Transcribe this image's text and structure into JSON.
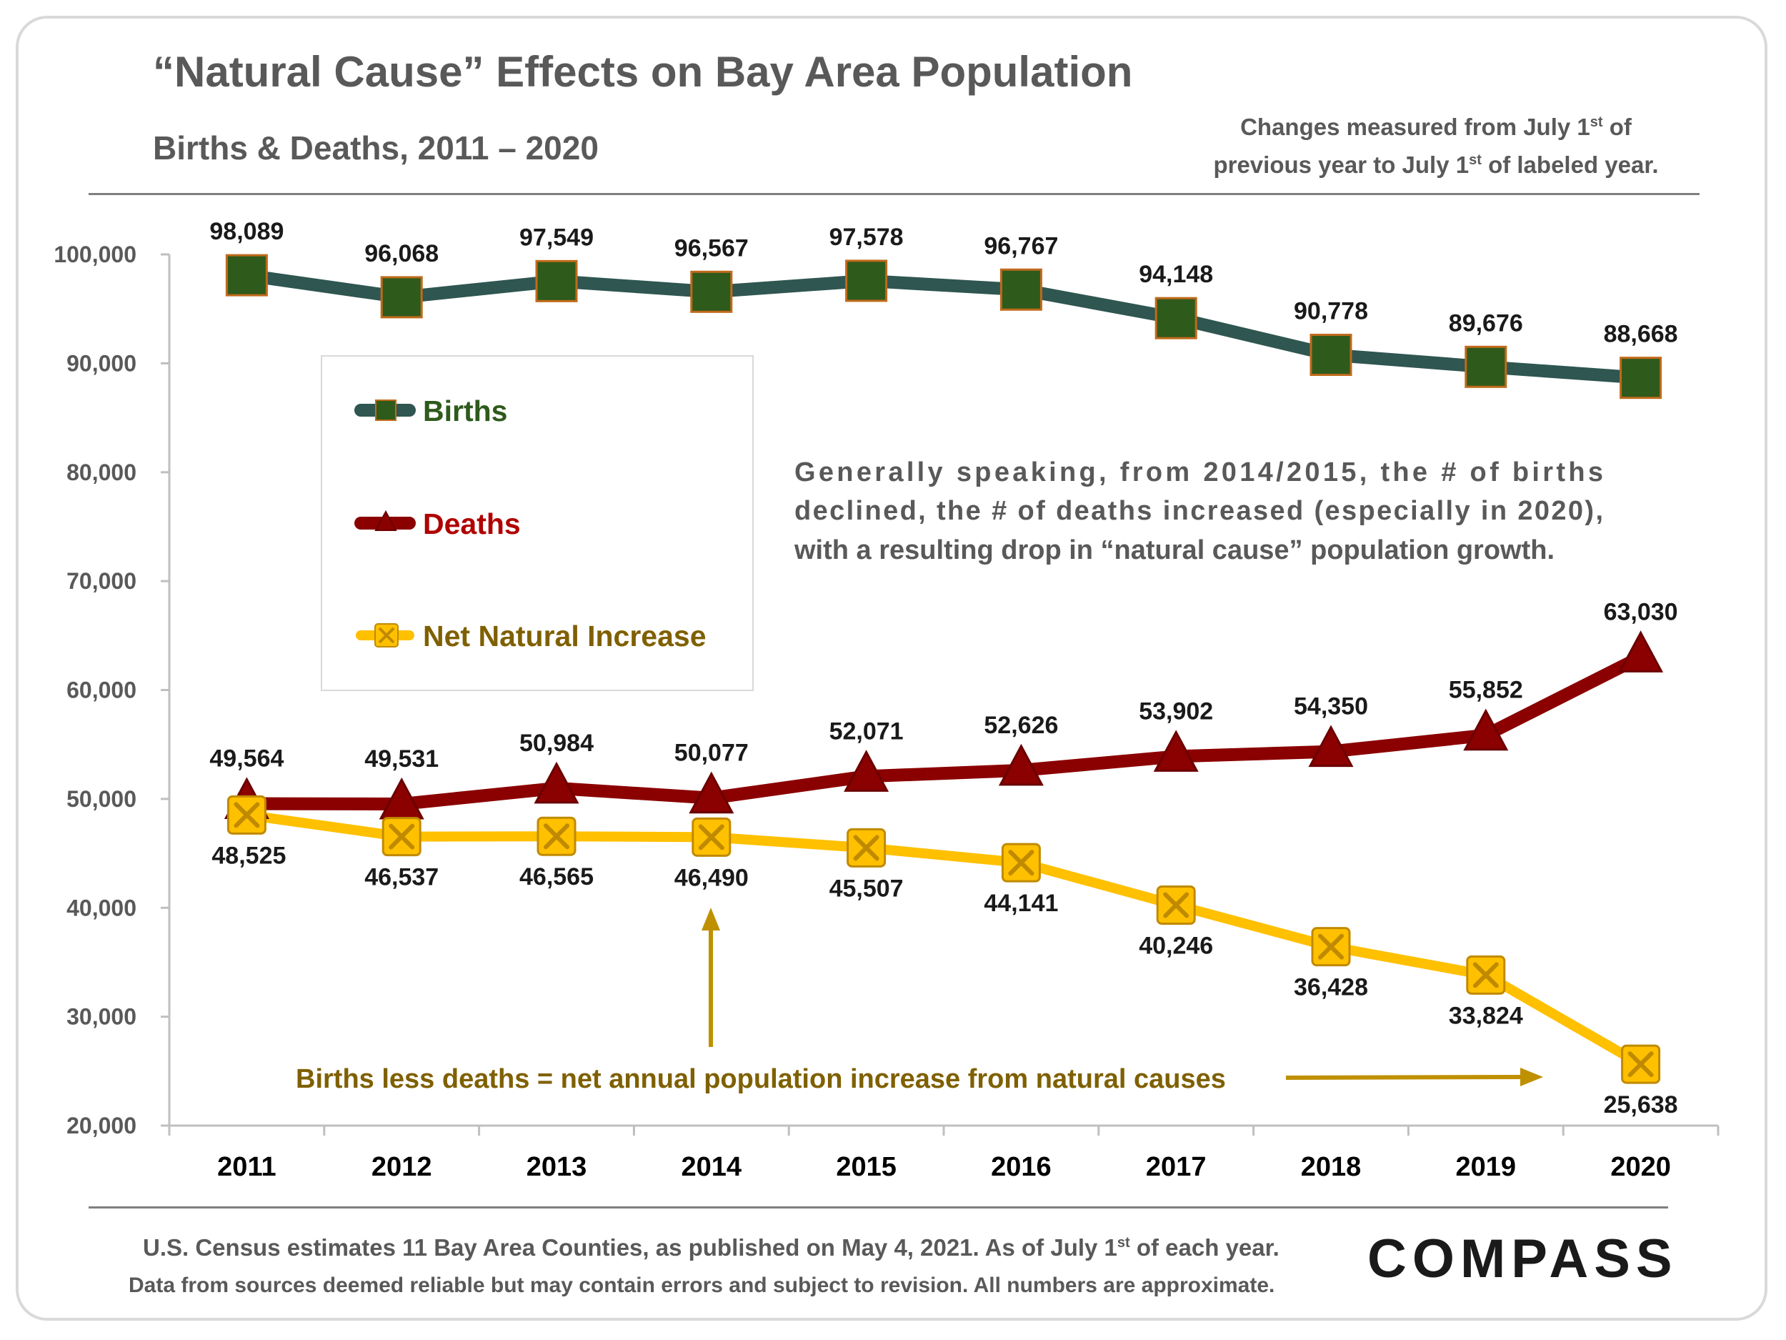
{
  "title": "“Natural Cause” Effects on Bay Area Population",
  "subtitle": "Births & Deaths, 2011 – 2020",
  "note": {
    "line1_a": "Changes measured from July 1",
    "line1_sup": "st",
    "line1_b": " of",
    "line2_a": "previous year to July 1",
    "line2_sup": "st",
    "line2_b": " of labeled year."
  },
  "annotation": {
    "line1": "Generally speaking, from 2014/2015, the # of births",
    "line2": "declined, the # of deaths increased (especially in 2020),",
    "line3": "with a resulting drop in “natural cause” population growth."
  },
  "bottom_note": "Births less deaths = net annual population increase from natural causes",
  "footer": {
    "line1_a": "U.S. Census estimates 11 Bay Area Counties, as published on May 4, 2021. As of July 1",
    "line1_sup": "st",
    "line1_b": " of each year.",
    "line2": "Data from sources deemed reliable but may contain errors and subject to revision. All numbers are approximate."
  },
  "logo": "COMPASS",
  "colors": {
    "births_line": "#2f5650",
    "births_marker": "#2e5a1c",
    "births_marker_edge": "#c06a1a",
    "births_legend_text": "#2e5a1c",
    "deaths_line": "#8b0000",
    "deaths_marker_edge": "#6b0000",
    "deaths_legend_text": "#b00000",
    "net_line": "#ffc000",
    "net_marker_edge": "#c08a00",
    "net_legend_text": "#7f6000",
    "arrow": "#bf9000",
    "text": "#595959",
    "label": "#1a1a1a"
  },
  "chart_data": {
    "type": "line",
    "title": "“Natural Cause” Effects on Bay Area Population",
    "subtitle": "Births & Deaths, 2011 – 2020",
    "categories": [
      "2011",
      "2012",
      "2013",
      "2014",
      "2015",
      "2016",
      "2017",
      "2018",
      "2019",
      "2020"
    ],
    "ylim": [
      20000,
      100000
    ],
    "yticks": [
      "20,000",
      "30,000",
      "40,000",
      "50,000",
      "60,000",
      "70,000",
      "80,000",
      "90,000",
      "100,000"
    ],
    "ytick_values": [
      20000,
      30000,
      40000,
      50000,
      60000,
      70000,
      80000,
      90000,
      100000
    ],
    "legend_position": "left-middle",
    "grid": false,
    "series": [
      {
        "name": "Births",
        "marker": "square",
        "values": [
          98089,
          96068,
          97549,
          96567,
          97578,
          96767,
          94148,
          90778,
          89676,
          88668
        ],
        "labels": [
          "98,089",
          "96,068",
          "97,549",
          "96,567",
          "97,578",
          "96,767",
          "94,148",
          "90,778",
          "89,676",
          "88,668"
        ]
      },
      {
        "name": "Deaths",
        "marker": "triangle",
        "values": [
          49564,
          49531,
          50984,
          50077,
          52071,
          52626,
          53902,
          54350,
          55852,
          63030
        ],
        "labels": [
          "49,564",
          "49,531",
          "50,984",
          "50,077",
          "52,071",
          "52,626",
          "53,902",
          "54,350",
          "55,852",
          "63,030"
        ]
      },
      {
        "name": "Net Natural Increase",
        "marker": "x-square",
        "values": [
          48525,
          46537,
          46565,
          46490,
          45507,
          44141,
          40246,
          36428,
          33824,
          25638
        ],
        "labels": [
          "48,525",
          "46,537",
          "46,565",
          "46,490",
          "45,507",
          "44,141",
          "40,246",
          "36,428",
          "33,824",
          "25,638"
        ]
      }
    ]
  }
}
